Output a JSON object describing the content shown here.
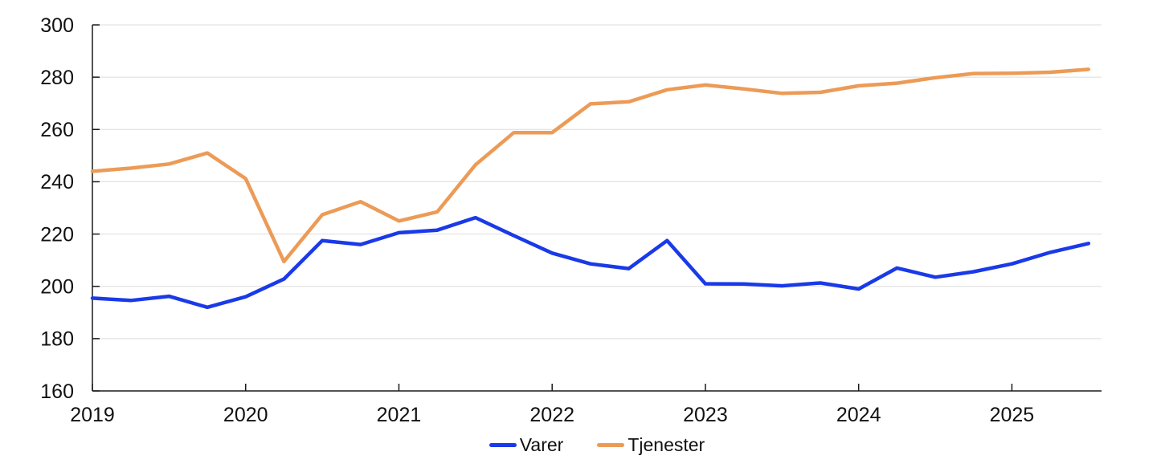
{
  "page": {
    "background": "#ffffff"
  },
  "chart_data": {
    "type": "line",
    "title": "",
    "xlabel": "",
    "ylabel": "",
    "x": [
      2019.0,
      2019.25,
      2019.5,
      2019.75,
      2020.0,
      2020.25,
      2020.5,
      2020.75,
      2021.0,
      2021.25,
      2021.5,
      2021.75,
      2022.0,
      2022.25,
      2022.5,
      2022.75,
      2023.0,
      2023.25,
      2023.5,
      2023.75,
      2024.0,
      2024.25,
      2024.5,
      2024.75,
      2025.0,
      2025.25,
      2025.5
    ],
    "series": [
      {
        "name": "Varer",
        "color": "#1A3AE8",
        "values": [
          195.5,
          194.6,
          196.2,
          192.0,
          196.0,
          202.8,
          217.5,
          216.0,
          220.5,
          221.5,
          226.3,
          219.4,
          212.7,
          208.6,
          206.8,
          217.5,
          201.0,
          200.9,
          200.2,
          201.3,
          199.0,
          207.0,
          203.5,
          205.6,
          208.6,
          213.0,
          216.4
        ]
      },
      {
        "name": "Tjenester",
        "color": "#EC9B57",
        "values": [
          244.0,
          245.2,
          246.8,
          251.0,
          241.2,
          209.5,
          227.4,
          232.4,
          225.0,
          228.5,
          246.5,
          258.8,
          258.8,
          269.8,
          270.6,
          275.2,
          277.0,
          275.5,
          273.8,
          274.2,
          276.7,
          277.7,
          279.8,
          281.4,
          281.5,
          281.9,
          283.0
        ]
      }
    ],
    "ylim": [
      160,
      300
    ],
    "xlim": [
      2019.0,
      2025.585
    ],
    "yticks": [
      160,
      180,
      200,
      220,
      240,
      260,
      280,
      300
    ],
    "xticks": [
      2019,
      2020,
      2021,
      2022,
      2023,
      2024,
      2025
    ],
    "grid": "horizontal",
    "legend_position": "bottom-center",
    "colors": {
      "axis": "#1a1a1a",
      "grid": "#dcdcdc",
      "tick_text": "#111111"
    }
  },
  "legend": {
    "items": [
      {
        "label": "Varer",
        "color": "#1A3AE8"
      },
      {
        "label": "Tjenester",
        "color": "#EC9B57"
      }
    ]
  }
}
